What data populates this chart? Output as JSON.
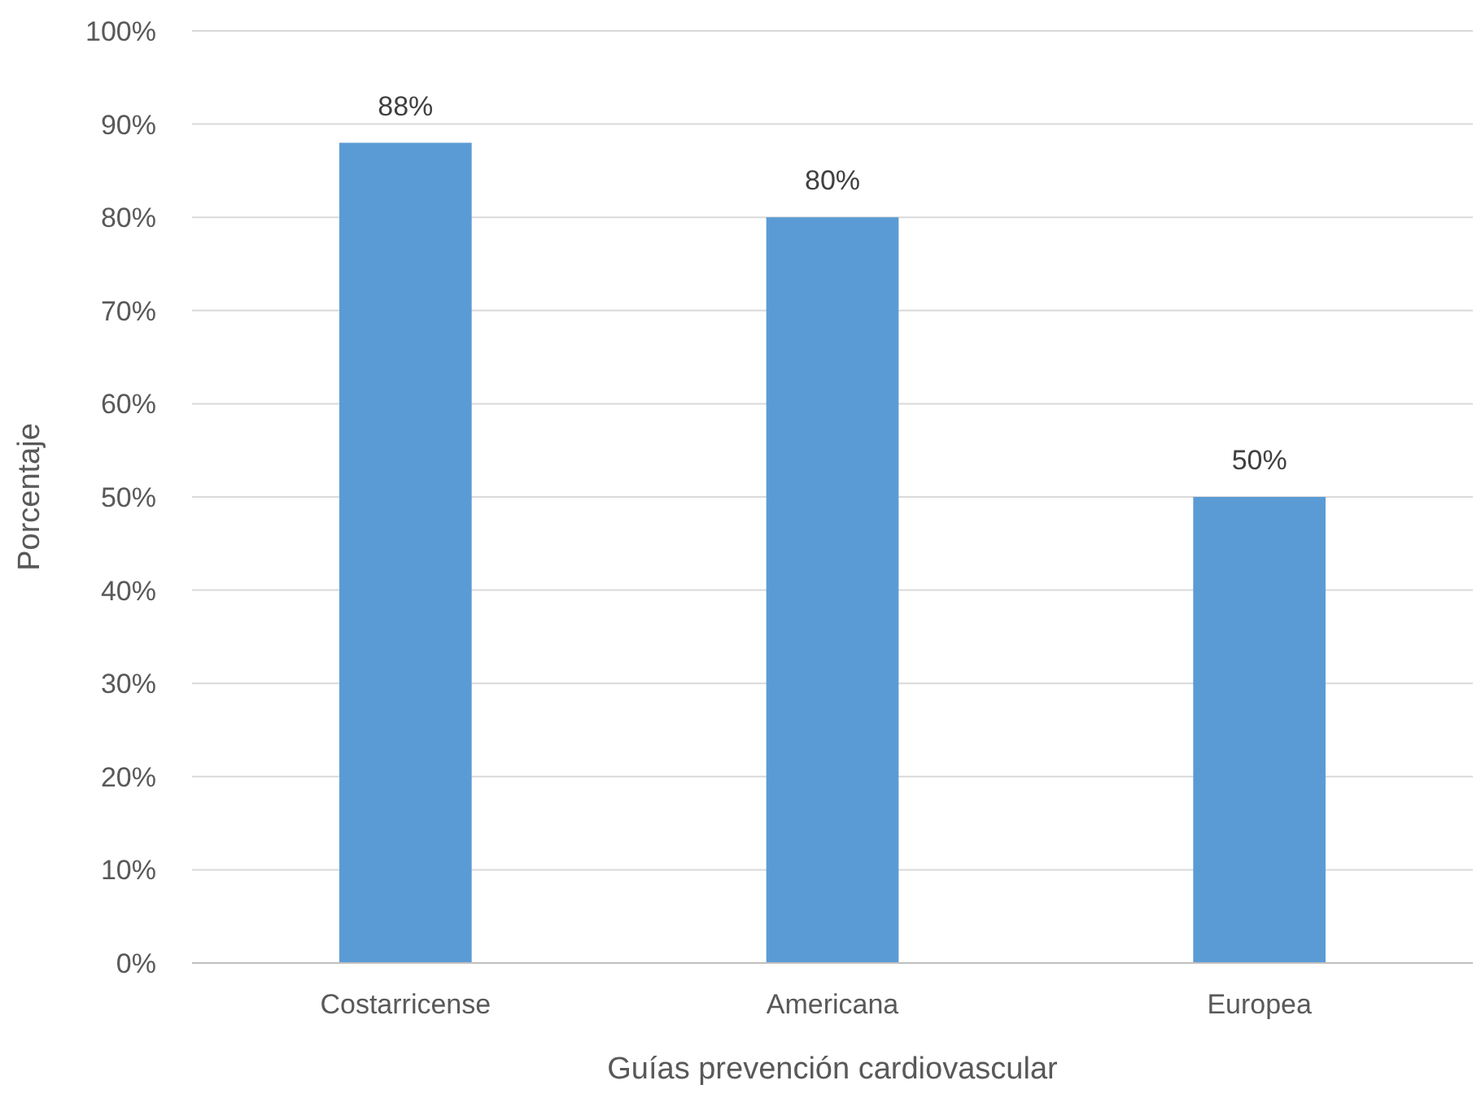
{
  "chart_data": {
    "type": "bar",
    "xlabel": "Guías prevención cardiovascular",
    "ylabel": "Porcentaje",
    "categories": [
      "Costarricense",
      "Americana",
      "Europea"
    ],
    "values": [
      88,
      80,
      50
    ],
    "color": "#5b9bd5",
    "value_labels": [
      "88%",
      "80%",
      "50%"
    ],
    "ylim": [
      0,
      100
    ],
    "yticks": [
      {
        "value": 0,
        "label": "0%"
      },
      {
        "value": 10,
        "label": "10%"
      },
      {
        "value": 20,
        "label": "20%"
      },
      {
        "value": 30,
        "label": "30%"
      },
      {
        "value": 40,
        "label": "40%"
      },
      {
        "value": 50,
        "label": "50%"
      },
      {
        "value": 60,
        "label": "60%"
      },
      {
        "value": 70,
        "label": "70%"
      },
      {
        "value": 80,
        "label": "80%"
      },
      {
        "value": 90,
        "label": "90%"
      },
      {
        "value": 100,
        "label": "100%"
      }
    ],
    "grid": "y"
  }
}
